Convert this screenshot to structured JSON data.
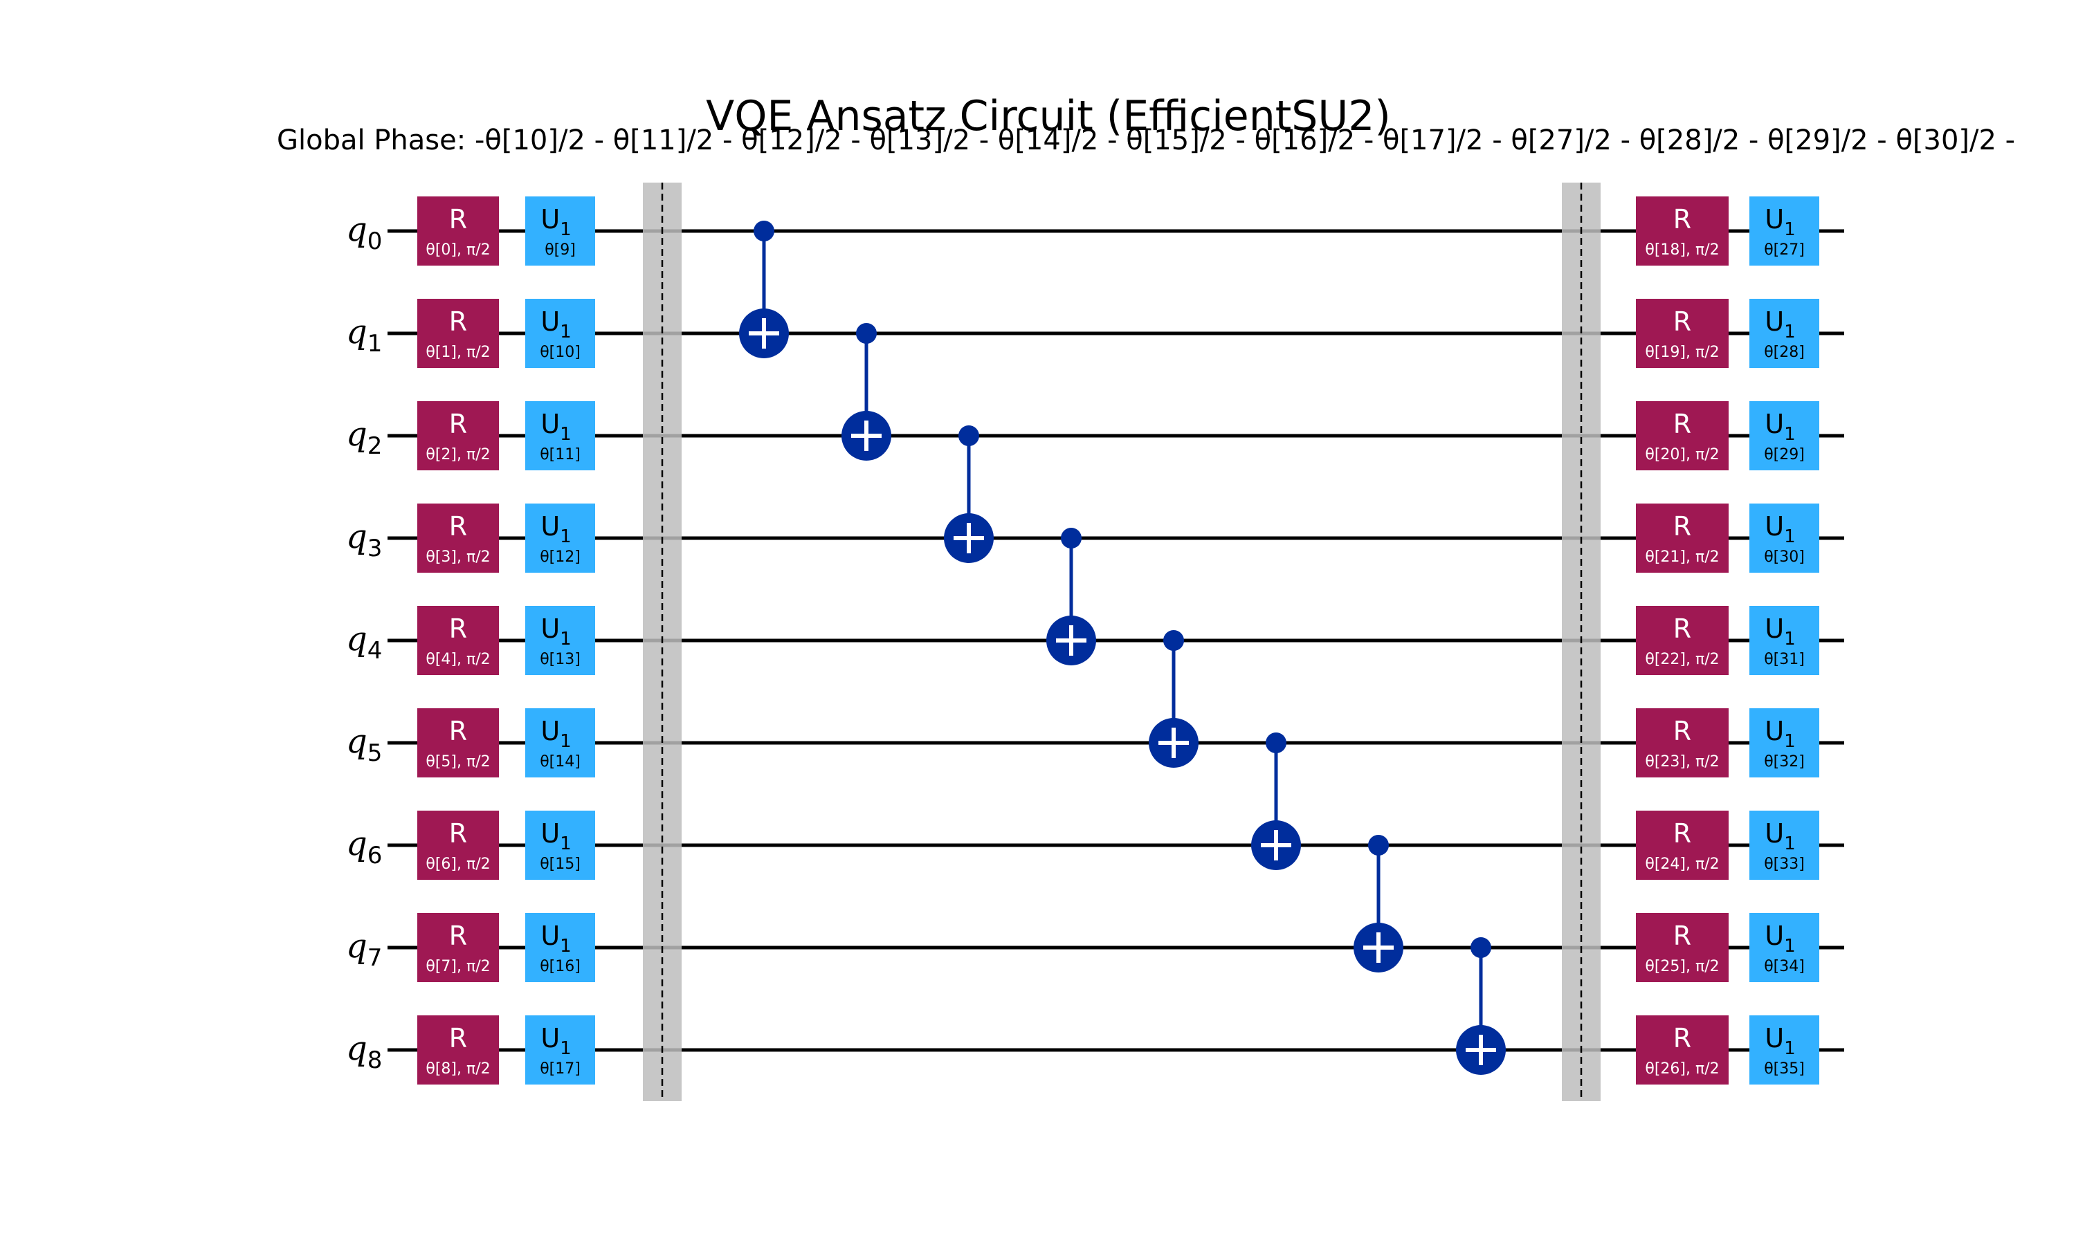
{
  "title": "VQE Ansatz Circuit (EfficientSU2)",
  "global_phase": "Global Phase: -θ[10]/2 - θ[11]/2 - θ[12]/2 - θ[13]/2 - θ[14]/2 - θ[15]/2 - θ[16]/2 - θ[17]/2 - θ[27]/2 - θ[28]/2 - θ[29]/2 - θ[30]/2 -",
  "colors": {
    "r_gate": "#9f1853",
    "u_gate": "#33b1ff",
    "cnot": "#002d9c",
    "barrier": "#bdbdbd",
    "wire": "#000000"
  },
  "qubits": [
    {
      "name": "q",
      "index": "0"
    },
    {
      "name": "q",
      "index": "1"
    },
    {
      "name": "q",
      "index": "2"
    },
    {
      "name": "q",
      "index": "3"
    },
    {
      "name": "q",
      "index": "4"
    },
    {
      "name": "q",
      "index": "5"
    },
    {
      "name": "q",
      "index": "6"
    },
    {
      "name": "q",
      "index": "7"
    },
    {
      "name": "q",
      "index": "8"
    }
  ],
  "r_label": "R",
  "u_label": "U",
  "u_subscript": "1",
  "layer1": {
    "r_params": [
      "θ[0], π/2",
      "θ[1], π/2",
      "θ[2], π/2",
      "θ[3], π/2",
      "θ[4], π/2",
      "θ[5], π/2",
      "θ[6], π/2",
      "θ[7], π/2",
      "θ[8], π/2"
    ],
    "u_params": [
      "θ[9]",
      "θ[10]",
      "θ[11]",
      "θ[12]",
      "θ[13]",
      "θ[14]",
      "θ[15]",
      "θ[16]",
      "θ[17]"
    ]
  },
  "layer2": {
    "r_params": [
      "θ[18], π/2",
      "θ[19], π/2",
      "θ[20], π/2",
      "θ[21], π/2",
      "θ[22], π/2",
      "θ[23], π/2",
      "θ[24], π/2",
      "θ[25], π/2",
      "θ[26], π/2"
    ],
    "u_params": [
      "θ[27]",
      "θ[28]",
      "θ[29]",
      "θ[30]",
      "θ[31]",
      "θ[32]",
      "θ[33]",
      "θ[34]",
      "θ[35]"
    ]
  },
  "cnots": [
    {
      "control": 0,
      "target": 1
    },
    {
      "control": 1,
      "target": 2
    },
    {
      "control": 2,
      "target": 3
    },
    {
      "control": 3,
      "target": 4
    },
    {
      "control": 4,
      "target": 5
    },
    {
      "control": 5,
      "target": 6
    },
    {
      "control": 6,
      "target": 7
    },
    {
      "control": 7,
      "target": 8
    }
  ]
}
